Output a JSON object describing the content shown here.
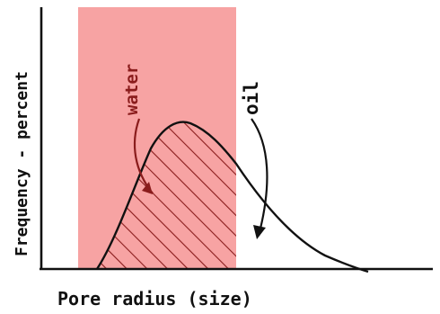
{
  "diagram": {
    "x_axis_label": "Pore radius (size)",
    "y_axis_label": "Frequency - percent",
    "labels": {
      "water": "water",
      "oil": "oil"
    },
    "colors": {
      "water_region": "#f7a3a3",
      "ink": "#111111",
      "water_ink": "#8a1c1c",
      "background": "#ffffff"
    },
    "regions": [
      {
        "name": "water",
        "fill": "hatched",
        "description_key": "water"
      },
      {
        "name": "oil",
        "fill": "none",
        "description_key": "oil"
      }
    ]
  }
}
